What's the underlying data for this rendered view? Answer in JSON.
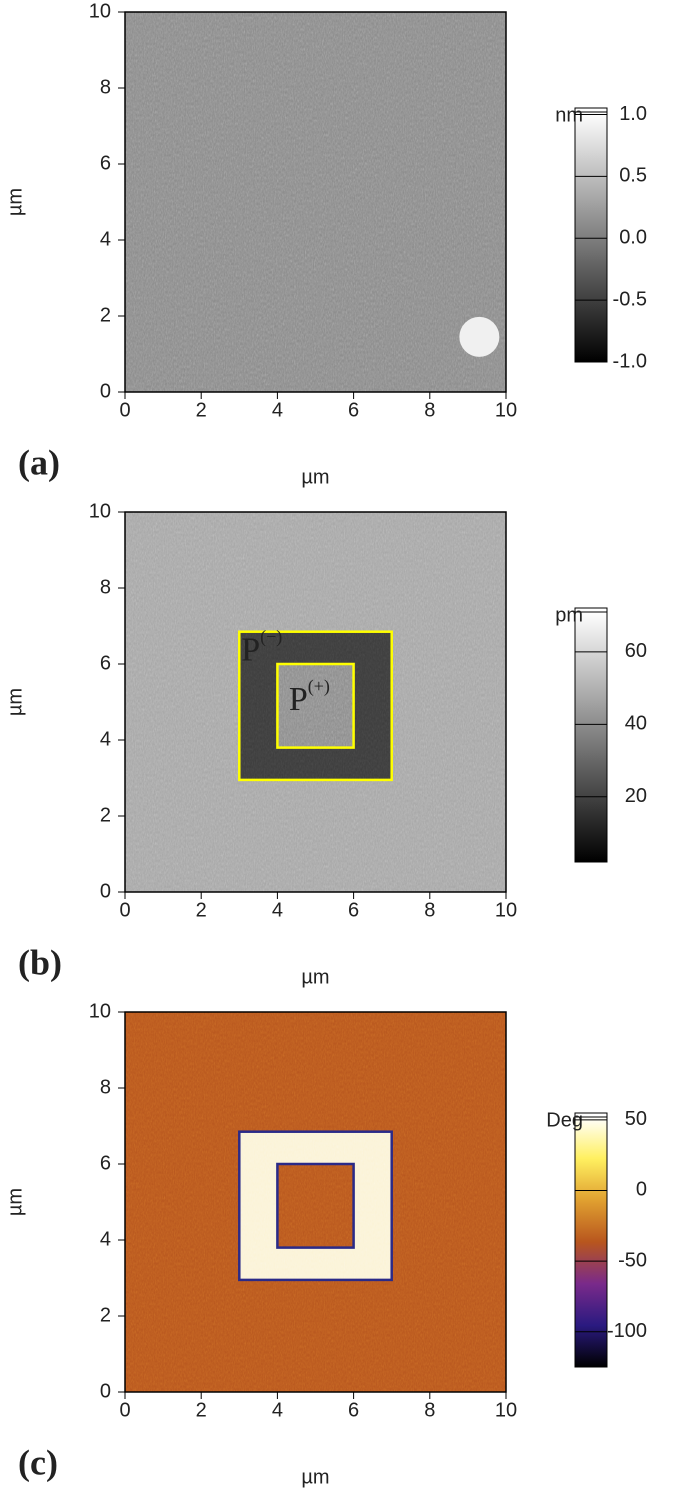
{
  "chart_data": [
    {
      "type": "image",
      "panel_label": "(a)",
      "xlabel": "µm",
      "ylabel": "µm",
      "xlim": [
        0,
        10
      ],
      "ylim": [
        0,
        10
      ],
      "xticks": [
        0,
        2,
        4,
        6,
        8,
        10
      ],
      "yticks": [
        0,
        2,
        4,
        6,
        8,
        10
      ],
      "image_color": "#8a8a8a",
      "colorbar": {
        "label": "nm",
        "clim": [
          -1.0,
          1.02
        ],
        "colormap": [
          "#000000",
          "#ffffff"
        ],
        "ticks": [
          {
            "value": 1.0,
            "label": "1.0"
          },
          0.5,
          {
            "value": 0.0,
            "label": "0.0"
          },
          -0.5,
          {
            "value": -1.0,
            "label": "-1.0"
          }
        ]
      }
    },
    {
      "type": "image",
      "panel_label": "(b)",
      "xlabel": "µm",
      "ylabel": "µm",
      "xlim": [
        0,
        10
      ],
      "ylim": [
        0,
        10
      ],
      "xticks": [
        0,
        2,
        4,
        6,
        8,
        10
      ],
      "yticks": [
        0,
        2,
        4,
        6,
        8,
        10
      ],
      "image_color": "#a6a6a6",
      "box_color": "#ffff00",
      "ring_color": "#3c3c3c",
      "inner_color": "#8c8c8c",
      "boxes": [
        {
          "x": [
            3,
            7
          ],
          "y": [
            2.95,
            6.85
          ]
        },
        {
          "x": [
            4,
            6
          ],
          "y": [
            3.8,
            6.0
          ]
        }
      ],
      "annotations": [
        {
          "text": "P",
          "sup": "(−)",
          "color": "#c2187d"
        },
        {
          "text": "P",
          "sup": "(+)",
          "color": "#2e2e9a"
        }
      ],
      "colorbar": {
        "label": "pm",
        "clim": [
          2,
          71
        ],
        "colormap": [
          "#000000",
          "#ffffff"
        ],
        "ticks": [
          60,
          40,
          20
        ]
      }
    },
    {
      "type": "image",
      "panel_label": "(c)",
      "xlabel": "µm",
      "ylabel": "µm",
      "xlim": [
        0,
        10
      ],
      "ylim": [
        0,
        10
      ],
      "xticks": [
        0,
        2,
        4,
        6,
        8,
        10
      ],
      "yticks": [
        0,
        2,
        4,
        6,
        8,
        10
      ],
      "image_color": "#b8561e",
      "box_color": "#2a2a88",
      "ring_color": "#fbf3d6",
      "inner_color": "#b8561e",
      "boxes": [
        {
          "x": [
            3,
            7
          ],
          "y": [
            2.95,
            6.85
          ]
        },
        {
          "x": [
            4,
            6
          ],
          "y": [
            3.8,
            6.0
          ]
        }
      ],
      "colorbar": {
        "label": "Deg",
        "clim": [
          -125,
          52
        ],
        "colormap": [
          "#000000",
          "#2a1a80",
          "#7a2a8a",
          "#b8561e",
          "#e0a030",
          "#fff060",
          "#ffffff"
        ],
        "ticks": [
          50,
          0,
          -50,
          -100
        ]
      }
    }
  ]
}
